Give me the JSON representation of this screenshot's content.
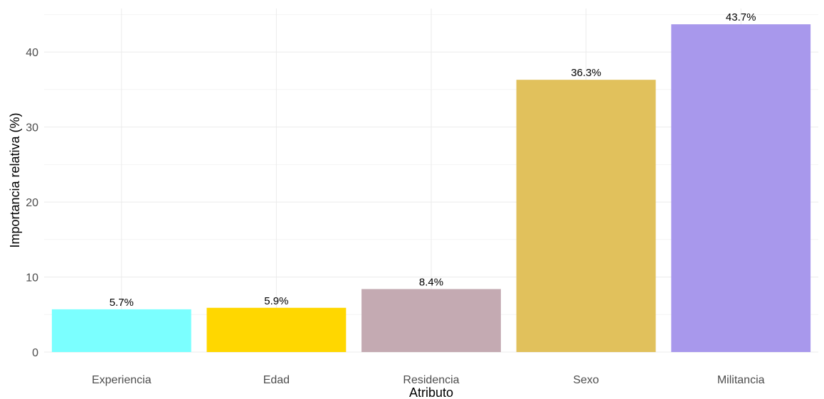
{
  "chart_data": {
    "type": "bar",
    "title": "",
    "xlabel": "Atributo",
    "ylabel": "Importancia relativa (%)",
    "categories": [
      "Experiencia",
      "Edad",
      "Residencia",
      "Sexo",
      "Militancia"
    ],
    "values": [
      5.7,
      5.9,
      8.4,
      36.3,
      43.7
    ],
    "value_labels": [
      "5.7%",
      "5.9%",
      "8.4%",
      "36.3%",
      "43.7%"
    ],
    "colors": [
      "#7bffff",
      "#ffd700",
      "#c4aab2",
      "#e1c15c",
      "#a898ec"
    ],
    "ylim": [
      0,
      45.8
    ],
    "yticks": [
      0,
      10,
      20,
      30,
      40
    ],
    "ytick_labels": [
      "0",
      "10",
      "20",
      "30",
      "40"
    ],
    "grid": true,
    "legend": "none"
  }
}
